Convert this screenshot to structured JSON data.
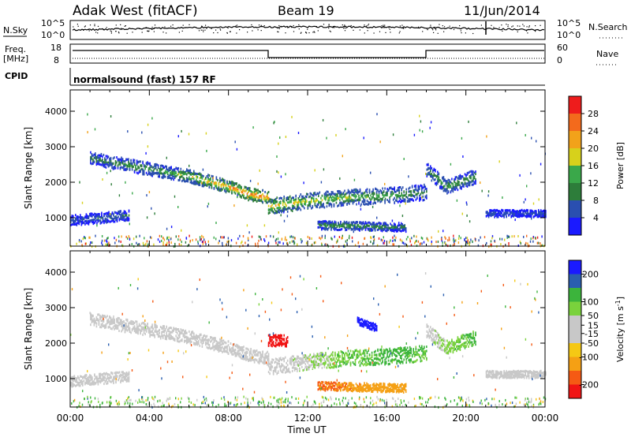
{
  "header": {
    "title": "Adak West (fitACF)",
    "beam": "Beam 19",
    "date": "11/Jun/2014"
  },
  "top_panels": {
    "nsky_label": "N.Sky",
    "nsearch_label": "N.Search",
    "nsky_ticks": [
      "10^5",
      "10^0"
    ],
    "freq_label": "Freq.",
    "freq_unit": "[MHz]",
    "freq_ticks": [
      "18",
      "8"
    ],
    "nave_label": "Nave",
    "nave_ticks": [
      "60",
      "0"
    ],
    "cpid_label": "CPID",
    "cpid_text": "normalsound (fast) 157 RF"
  },
  "colors": {
    "power": [
      "#1a1aff",
      "#2a4fb0",
      "#2d7d3a",
      "#3aa84a",
      "#d7d11b",
      "#f2a21a",
      "#f36a1c",
      "#ee1c1c"
    ],
    "velocity": [
      "#f01414",
      "#f55a14",
      "#f5a014",
      "#f5c814",
      "#c8c8c8",
      "#c8c8c8",
      "#7ad23c",
      "#3cb43c",
      "#2a7d3a",
      "#2a5fb0",
      "#1a1aff"
    ]
  },
  "chart_data": [
    {
      "type": "heatmap",
      "name": "power",
      "xlabel": "",
      "ylabel": "Slant Range [km]",
      "x_ticks": [
        "00:00",
        "04:00",
        "08:00",
        "12:00",
        "16:00",
        "20:00",
        "00:00"
      ],
      "y_ticks": [
        1000,
        2000,
        3000,
        4000
      ],
      "xlim": [
        0,
        24
      ],
      "ylim": [
        200,
        4600
      ],
      "colorbar": {
        "label": "Power [dB]",
        "ticks": [
          4,
          8,
          12,
          16,
          20,
          24,
          28
        ],
        "range": [
          0,
          32
        ]
      },
      "echo_bands": [
        {
          "t": [
            1,
            3,
            5,
            6,
            8,
            9,
            10
          ],
          "range": [
            2700,
            2500,
            2300,
            2200,
            1900,
            1700,
            1600
          ],
          "width": 180,
          "peak_dB": [
            10,
            12,
            14,
            18,
            24,
            28,
            26
          ]
        },
        {
          "t": [
            10,
            12,
            14,
            16,
            17,
            18
          ],
          "range": [
            1350,
            1500,
            1600,
            1650,
            1700,
            1750
          ],
          "width": 220,
          "peak_dB": [
            22,
            18,
            16,
            14,
            12,
            10
          ]
        },
        {
          "t": [
            12.5,
            14,
            15.5,
            17
          ],
          "range": [
            820,
            800,
            780,
            760
          ],
          "width": 120,
          "peak_dB": [
            12,
            14,
            12,
            10
          ]
        },
        {
          "t": [
            18,
            19,
            20.5
          ],
          "range": [
            2400,
            1900,
            2200
          ],
          "width": 200,
          "peak_dB": [
            10,
            14,
            12
          ]
        },
        {
          "t": [
            0,
            1,
            3
          ],
          "range": [
            950,
            1000,
            1100
          ],
          "width": 150,
          "peak_dB": [
            6,
            8,
            8
          ]
        },
        {
          "t": [
            21,
            22.5,
            24
          ],
          "range": [
            1150,
            1150,
            1150
          ],
          "width": 100,
          "peak_dB": [
            6,
            6,
            6
          ]
        }
      ]
    },
    {
      "type": "heatmap",
      "name": "velocity",
      "xlabel": "Time UT",
      "ylabel": "Slant Range [km]",
      "x_ticks": [
        "00:00",
        "04:00",
        "08:00",
        "12:00",
        "16:00",
        "20:00",
        "00:00"
      ],
      "y_ticks": [
        1000,
        2000,
        3000,
        4000
      ],
      "xlim": [
        0,
        24
      ],
      "ylim": [
        200,
        4600
      ],
      "colorbar": {
        "label": "Velocity [m s",
        "label_sup": "-1",
        "label_close": "]",
        "ticks": [
          200,
          100,
          50,
          15,
          -15,
          -50,
          -100,
          -200
        ],
        "range": [
          -250,
          250
        ]
      },
      "echo_bands": [
        {
          "t": [
            1,
            3,
            5,
            6,
            8,
            9,
            10
          ],
          "range": [
            2700,
            2500,
            2300,
            2200,
            1900,
            1700,
            1600
          ],
          "width": 180,
          "vel": [
            0,
            0,
            0,
            0,
            0,
            0,
            0
          ]
        },
        {
          "t": [
            10,
            12,
            14,
            16,
            17,
            18
          ],
          "range": [
            1350,
            1500,
            1600,
            1650,
            1700,
            1750
          ],
          "width": 220,
          "vel": [
            0,
            10,
            30,
            40,
            40,
            30
          ]
        },
        {
          "t": [
            12.5,
            14,
            15.5,
            17
          ],
          "range": [
            820,
            800,
            780,
            760
          ],
          "width": 120,
          "vel": [
            -80,
            -70,
            -60,
            -50
          ]
        },
        {
          "t": [
            18,
            19,
            20.5
          ],
          "range": [
            2400,
            1900,
            2200
          ],
          "width": 200,
          "vel": [
            0,
            20,
            40
          ]
        },
        {
          "t": [
            0,
            1,
            3
          ],
          "range": [
            950,
            1000,
            1100
          ],
          "width": 150,
          "vel": [
            0,
            0,
            0
          ]
        },
        {
          "t": [
            21,
            22.5,
            24
          ],
          "range": [
            1150,
            1150,
            1150
          ],
          "width": 100,
          "vel": [
            0,
            0,
            0
          ]
        },
        {
          "t": [
            10,
            11
          ],
          "range": [
            2100,
            2100
          ],
          "width": 160,
          "vel": [
            -220,
            -200
          ]
        },
        {
          "t": [
            14.5,
            15.5
          ],
          "range": [
            2650,
            2450
          ],
          "width": 100,
          "vel": [
            200,
            220
          ]
        }
      ]
    }
  ]
}
